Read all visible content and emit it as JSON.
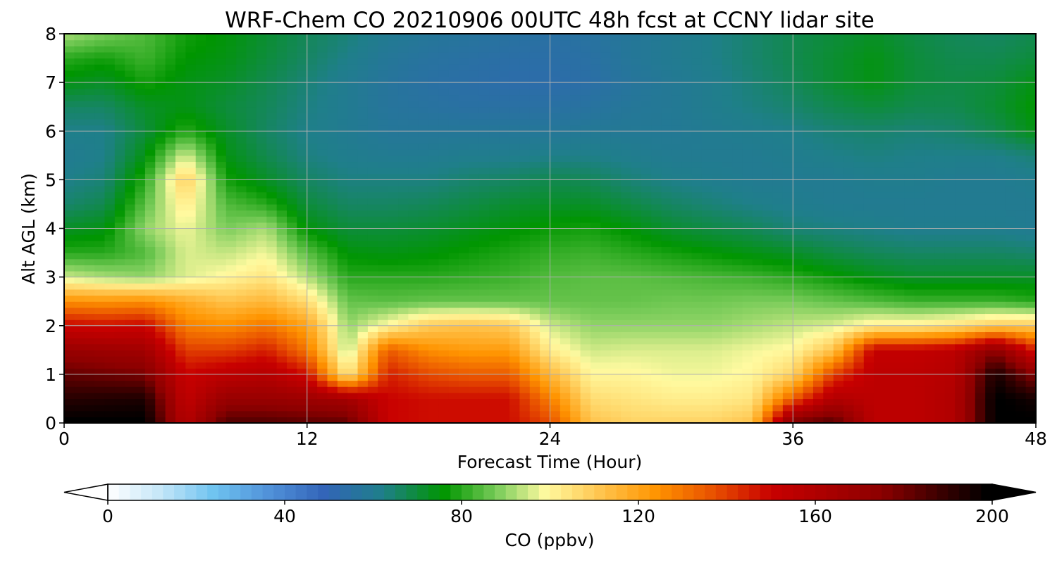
{
  "chart_data": {
    "type": "heatmap",
    "title": "WRF-Chem CO  20210906 00UTC 48h fcst at CCNY lidar site",
    "xlabel": "Forecast Time (Hour)",
    "ylabel": "Alt AGL (km)",
    "xlim": [
      0,
      48
    ],
    "ylim": [
      0,
      8
    ],
    "xticks": [
      0,
      12,
      24,
      36,
      48
    ],
    "yticks": [
      0,
      1,
      2,
      3,
      4,
      5,
      6,
      7,
      8
    ],
    "grid": true,
    "x": [
      0,
      2,
      4,
      6,
      8,
      10,
      12,
      14,
      16,
      18,
      20,
      22,
      24,
      26,
      28,
      30,
      32,
      34,
      36,
      38,
      40,
      42,
      44,
      46,
      48
    ],
    "y": [
      0,
      0.5,
      1,
      1.5,
      2,
      2.5,
      3,
      3.5,
      4,
      4.5,
      5,
      5.5,
      6,
      6.5,
      7,
      7.5,
      8
    ],
    "values": [
      [
        200,
        200,
        200,
        158,
        185,
        185,
        183,
        182,
        150,
        148,
        148,
        148,
        138,
        112,
        108,
        108,
        108,
        112,
        180,
        185,
        155,
        155,
        160,
        200,
        200
      ],
      [
        192,
        193,
        194,
        153,
        170,
        170,
        168,
        165,
        150,
        148,
        148,
        148,
        128,
        106,
        104,
        102,
        102,
        104,
        135,
        160,
        155,
        155,
        160,
        200,
        195
      ],
      [
        182,
        180,
        178,
        150,
        155,
        158,
        148,
        102,
        145,
        138,
        135,
        135,
        115,
        100,
        100,
        98,
        98,
        100,
        108,
        140,
        155,
        155,
        158,
        195,
        175
      ],
      [
        170,
        168,
        166,
        140,
        140,
        145,
        130,
        92,
        135,
        125,
        122,
        122,
        102,
        95,
        96,
        96,
        96,
        98,
        100,
        112,
        152,
        152,
        155,
        175,
        145
      ],
      [
        150,
        148,
        150,
        128,
        125,
        130,
        120,
        90,
        100,
        110,
        112,
        110,
        95,
        90,
        90,
        90,
        90,
        92,
        94,
        96,
        102,
        102,
        105,
        110,
        110
      ],
      [
        125,
        124,
        125,
        118,
        112,
        115,
        106,
        86,
        85,
        86,
        86,
        86,
        86,
        86,
        86,
        87,
        87,
        88,
        88,
        86,
        84,
        82,
        82,
        82,
        80
      ],
      [
        95,
        92,
        90,
        96,
        100,
        104,
        93,
        80,
        80,
        80,
        81,
        82,
        84,
        85,
        85,
        84,
        83,
        82,
        80,
        77,
        74,
        72,
        72,
        72,
        72
      ],
      [
        80,
        80,
        84,
        96,
        94,
        98,
        85,
        75,
        74,
        75,
        77,
        79,
        81,
        82,
        80,
        78,
        76,
        74,
        72,
        69,
        67,
        66,
        66,
        66,
        65
      ],
      [
        72,
        74,
        90,
        98,
        88,
        92,
        75,
        70,
        70,
        71,
        73,
        75,
        77,
        78,
        75,
        71,
        69,
        67,
        64,
        63,
        62,
        61,
        61,
        61,
        60
      ],
      [
        65,
        68,
        85,
        103,
        84,
        80,
        70,
        66,
        66,
        67,
        69,
        71,
        72,
        72,
        69,
        66,
        64,
        62,
        61,
        60,
        60,
        60,
        60,
        60,
        60
      ],
      [
        62,
        64,
        80,
        110,
        78,
        72,
        66,
        63,
        63,
        63,
        65,
        66,
        68,
        67,
        64,
        62,
        61,
        60,
        60,
        60,
        61,
        61,
        60,
        60,
        61
      ],
      [
        60,
        62,
        74,
        96,
        74,
        68,
        63,
        61,
        60,
        60,
        61,
        61,
        62,
        62,
        61,
        60,
        60,
        60,
        61,
        62,
        63,
        62,
        62,
        62,
        64
      ],
      [
        62,
        62,
        70,
        80,
        72,
        66,
        62,
        60,
        58,
        58,
        58,
        58,
        58,
        59,
        59,
        59,
        60,
        61,
        62,
        64,
        65,
        64,
        65,
        68,
        74
      ],
      [
        66,
        66,
        72,
        74,
        70,
        67,
        63,
        60,
        57,
        56,
        55,
        55,
        55,
        56,
        58,
        59,
        61,
        63,
        65,
        68,
        70,
        68,
        68,
        71,
        76
      ],
      [
        74,
        72,
        78,
        74,
        72,
        68,
        64,
        60,
        57,
        55,
        54,
        53,
        53,
        54,
        57,
        59,
        61,
        64,
        67,
        71,
        74,
        70,
        69,
        70,
        74
      ],
      [
        80,
        78,
        82,
        76,
        74,
        70,
        66,
        62,
        58,
        56,
        55,
        54,
        54,
        55,
        58,
        60,
        62,
        65,
        68,
        71,
        74,
        70,
        68,
        68,
        70
      ],
      [
        92,
        88,
        84,
        78,
        75,
        71,
        67,
        64,
        60,
        58,
        57,
        56,
        55,
        56,
        58,
        60,
        62,
        65,
        68,
        70,
        72,
        69,
        67,
        66,
        68
      ]
    ],
    "colorbar": {
      "label": "CO  (ppbv)",
      "ticks": [
        0,
        40,
        80,
        120,
        160,
        200
      ],
      "range": [
        0,
        200
      ],
      "extend": "both",
      "colorstops": [
        {
          "v": 0,
          "c": "#ffffff"
        },
        {
          "v": 12,
          "c": "#c4e6f8"
        },
        {
          "v": 24,
          "c": "#6ec3f0"
        },
        {
          "v": 37,
          "c": "#4f8fd8"
        },
        {
          "v": 49,
          "c": "#3264b8"
        },
        {
          "v": 62,
          "c": "#1f7f8a"
        },
        {
          "v": 76,
          "c": "#009600"
        },
        {
          "v": 88,
          "c": "#7acc5a"
        },
        {
          "v": 99,
          "c": "#fffaa0"
        },
        {
          "v": 112,
          "c": "#ffc24a"
        },
        {
          "v": 124,
          "c": "#ff9400"
        },
        {
          "v": 137,
          "c": "#e85000"
        },
        {
          "v": 150,
          "c": "#c80000"
        },
        {
          "v": 175,
          "c": "#8c0000"
        },
        {
          "v": 188,
          "c": "#3c0000"
        },
        {
          "v": 199,
          "c": "#000000"
        }
      ]
    }
  }
}
